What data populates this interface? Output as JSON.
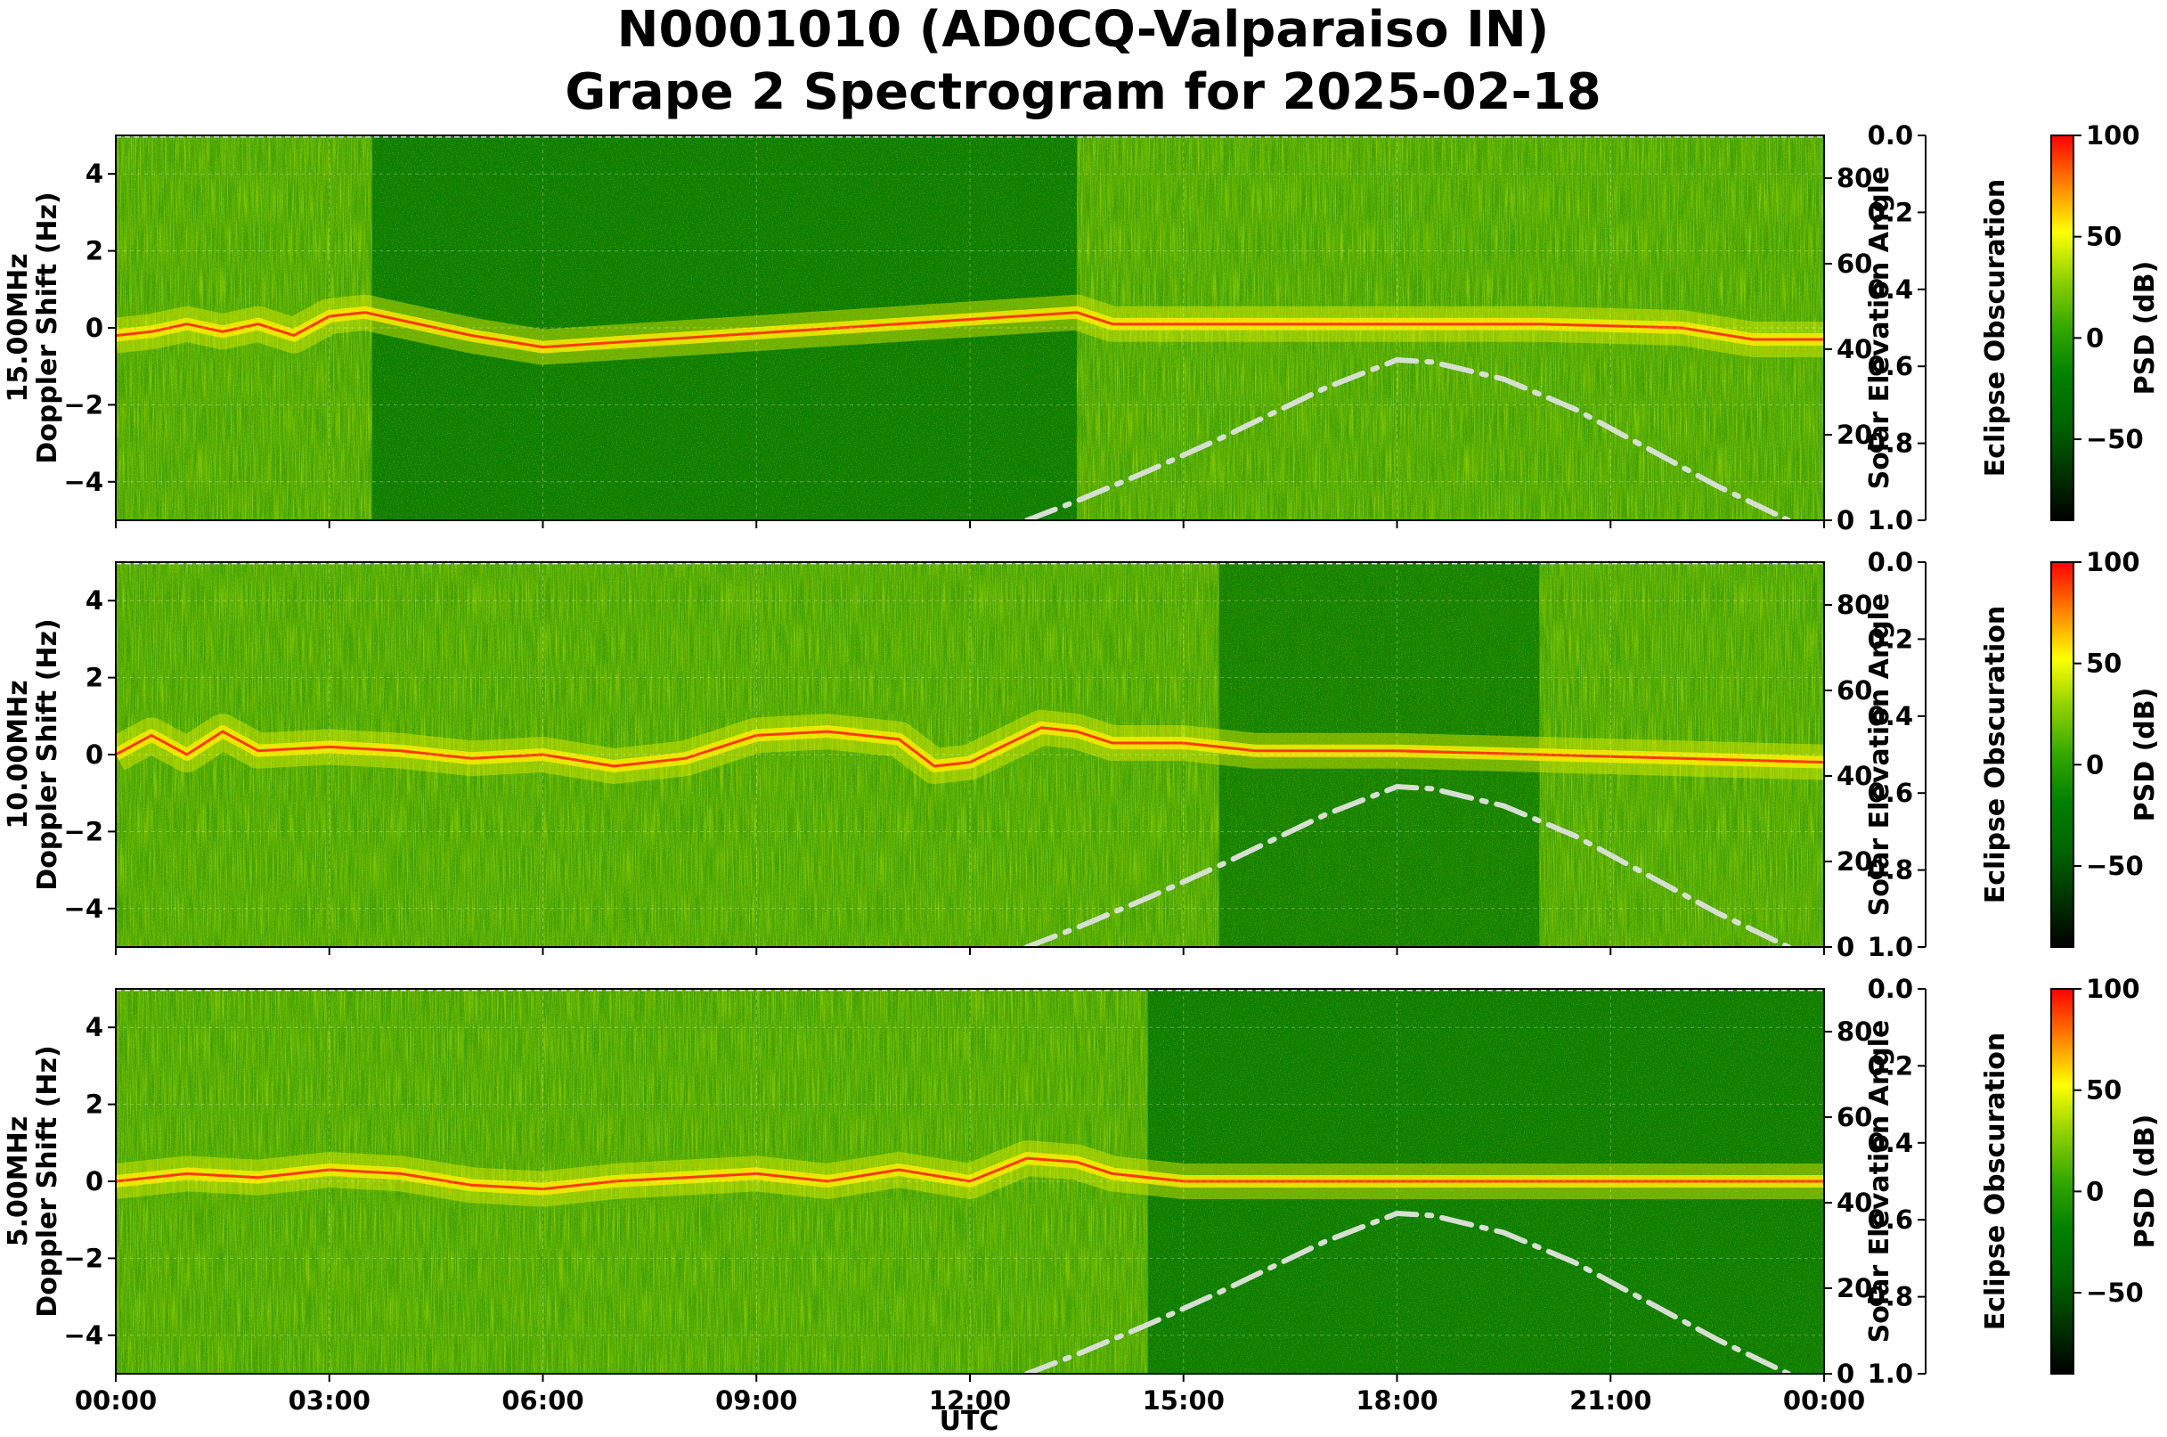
{
  "chart_data": {
    "type": "heatmap",
    "title": [
      "N0001010 (AD0CQ-Valparaiso IN)",
      "Grape 2 Spectrogram for 2025-02-18"
    ],
    "xlabel": "UTC",
    "x_ticks": [
      "00:00",
      "03:00",
      "06:00",
      "09:00",
      "12:00",
      "15:00",
      "18:00",
      "21:00",
      "00:00"
    ],
    "xlim_hours": [
      0,
      24
    ],
    "ylabel_unit": "Doppler Shift (Hz)",
    "ylim": [
      -5,
      5
    ],
    "y_ticks": [
      4,
      2,
      0,
      -2,
      -4
    ],
    "solar_elevation_axis": {
      "label": "Solar Elevation Angle",
      "ticks": [
        80,
        60,
        40,
        20,
        0
      ],
      "ylim": [
        0,
        90
      ]
    },
    "eclipse_axis": {
      "label": "Eclipse Obscuration",
      "ticks": [
        "0.0",
        "0.2",
        "0.4",
        "0.6",
        "0.8",
        "1.0"
      ],
      "ylim": [
        0,
        1
      ],
      "inverted": true
    },
    "colorbar": {
      "label": "PSD (dB)",
      "ticks": [
        100,
        50,
        0,
        -50
      ],
      "range": [
        -90,
        100
      ],
      "colormap": [
        "#000000",
        "#003300",
        "#006400",
        "#008000",
        "#33a800",
        "#8fd100",
        "#ffff00",
        "#ff8000",
        "#ff0000"
      ]
    },
    "solar_elevation_curve": {
      "style": "dash-dot",
      "color": "#d6dfd2",
      "points_hours_deg": [
        [
          12.8,
          0
        ],
        [
          13.5,
          4.5
        ],
        [
          14.5,
          11.5
        ],
        [
          15.5,
          19
        ],
        [
          16.5,
          27
        ],
        [
          17.0,
          31
        ],
        [
          18.0,
          37.5
        ],
        [
          18.5,
          37
        ],
        [
          19.5,
          33
        ],
        [
          20.5,
          26
        ],
        [
          21.5,
          17
        ],
        [
          22.5,
          8
        ],
        [
          23.5,
          0
        ]
      ]
    },
    "panels": [
      {
        "ylabel": "15.00MHz",
        "carrier_trace_hz": [
          [
            0,
            -0.2
          ],
          [
            0.5,
            -0.1
          ],
          [
            1,
            0.1
          ],
          [
            1.5,
            -0.1
          ],
          [
            2,
            0.1
          ],
          [
            2.5,
            -0.2
          ],
          [
            3,
            0.3
          ],
          [
            3.5,
            0.4
          ],
          [
            4,
            0.2
          ],
          [
            5,
            -0.2
          ],
          [
            6,
            -0.5
          ],
          [
            13.5,
            0.4
          ],
          [
            14,
            0.1
          ],
          [
            16,
            0.1
          ],
          [
            18,
            0.1
          ],
          [
            20,
            0.1
          ],
          [
            22,
            0
          ],
          [
            23,
            -0.3
          ],
          [
            24,
            -0.3
          ]
        ],
        "noisy_periods_hours": [
          [
            0,
            3.6
          ],
          [
            13.5,
            24
          ]
        ],
        "quiet_periods_hours": [
          [
            3.6,
            13.5
          ]
        ]
      },
      {
        "ylabel": "10.00MHz",
        "carrier_trace_hz": [
          [
            0,
            0
          ],
          [
            0.5,
            0.5
          ],
          [
            1,
            0
          ],
          [
            1.5,
            0.6
          ],
          [
            2,
            0.1
          ],
          [
            3,
            0.2
          ],
          [
            4,
            0.1
          ],
          [
            5,
            -0.1
          ],
          [
            6,
            0
          ],
          [
            7,
            -0.3
          ],
          [
            8,
            -0.1
          ],
          [
            9,
            0.5
          ],
          [
            10,
            0.6
          ],
          [
            11,
            0.4
          ],
          [
            11.5,
            -0.3
          ],
          [
            12,
            -0.2
          ],
          [
            13,
            0.7
          ],
          [
            13.5,
            0.6
          ],
          [
            14,
            0.3
          ],
          [
            15,
            0.3
          ],
          [
            16,
            0.1
          ],
          [
            18,
            0.1
          ],
          [
            20,
            0
          ],
          [
            22,
            -0.1
          ],
          [
            24,
            -0.2
          ]
        ],
        "noisy_periods_hours": [
          [
            0,
            24
          ]
        ],
        "quiet_periods_hours": [
          [
            15.5,
            20
          ]
        ]
      },
      {
        "ylabel": "5.00MHz",
        "carrier_trace_hz": [
          [
            0,
            0
          ],
          [
            1,
            0.2
          ],
          [
            2,
            0.1
          ],
          [
            3,
            0.3
          ],
          [
            4,
            0.2
          ],
          [
            5,
            -0.1
          ],
          [
            6,
            -0.2
          ],
          [
            7,
            0
          ],
          [
            8,
            0.1
          ],
          [
            9,
            0.2
          ],
          [
            10,
            0
          ],
          [
            11,
            0.3
          ],
          [
            12,
            0
          ],
          [
            12.8,
            0.6
          ],
          [
            13.5,
            0.5
          ],
          [
            14,
            0.2
          ],
          [
            15,
            0
          ],
          [
            18,
            0
          ],
          [
            21,
            0
          ],
          [
            24,
            0
          ]
        ],
        "noisy_periods_hours": [
          [
            0,
            14.5
          ]
        ],
        "quiet_periods_hours": [
          [
            14.5,
            24
          ]
        ]
      }
    ]
  }
}
